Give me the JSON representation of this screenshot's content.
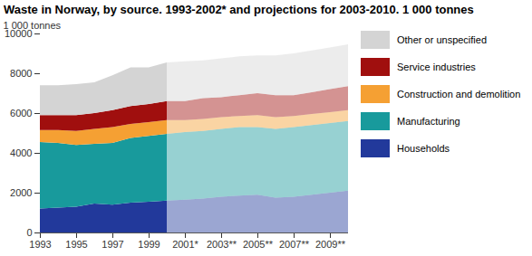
{
  "chart_data": {
    "type": "area",
    "title": "Waste in Norway, by source. 1993-2002* and projections for 2003-2010. 1 000 tonnes",
    "y_label": "1 000 tonnes",
    "stacked": true,
    "legend": "right",
    "categories": [
      "1993",
      null,
      "1995",
      null,
      "1997",
      null,
      "1999",
      null,
      "2001*",
      null,
      "2003**",
      null,
      "2005**",
      null,
      "2007**",
      null,
      "2009**",
      null
    ],
    "ylim": [
      0,
      10000
    ],
    "yticks": [
      0,
      2000,
      4000,
      6000,
      8000,
      10000
    ],
    "series": [
      {
        "name": "Households",
        "color": "#22399b",
        "values": [
          1200,
          1250,
          1300,
          1450,
          1400,
          1500,
          1550,
          1600,
          1650,
          1700,
          1800,
          1850,
          1900,
          1750,
          1800,
          1900,
          2000,
          2100
        ]
      },
      {
        "name": "Manufacturing",
        "color": "#189a9c",
        "values": [
          3350,
          3250,
          3100,
          3000,
          3100,
          3250,
          3300,
          3350,
          3400,
          3400,
          3400,
          3450,
          3400,
          3450,
          3500,
          3500,
          3500,
          3500
        ]
      },
      {
        "name": "Construction and demolition",
        "color": "#f5a033",
        "values": [
          600,
          650,
          700,
          750,
          800,
          700,
          700,
          700,
          600,
          600,
          600,
          550,
          600,
          600,
          550,
          550,
          550,
          550
        ]
      },
      {
        "name": "Service industries",
        "color": "#a00f0e",
        "values": [
          750,
          750,
          800,
          800,
          850,
          900,
          900,
          950,
          950,
          1050,
          1000,
          1050,
          1100,
          1100,
          1050,
          1100,
          1150,
          1200
        ]
      },
      {
        "name": "Other or unspecified",
        "color": "#d4d4d4",
        "values": [
          1500,
          1500,
          1550,
          1550,
          1750,
          1950,
          1850,
          1950,
          2000,
          1900,
          1950,
          1950,
          1900,
          2000,
          2100,
          2100,
          2100,
          2100
        ]
      }
    ]
  }
}
